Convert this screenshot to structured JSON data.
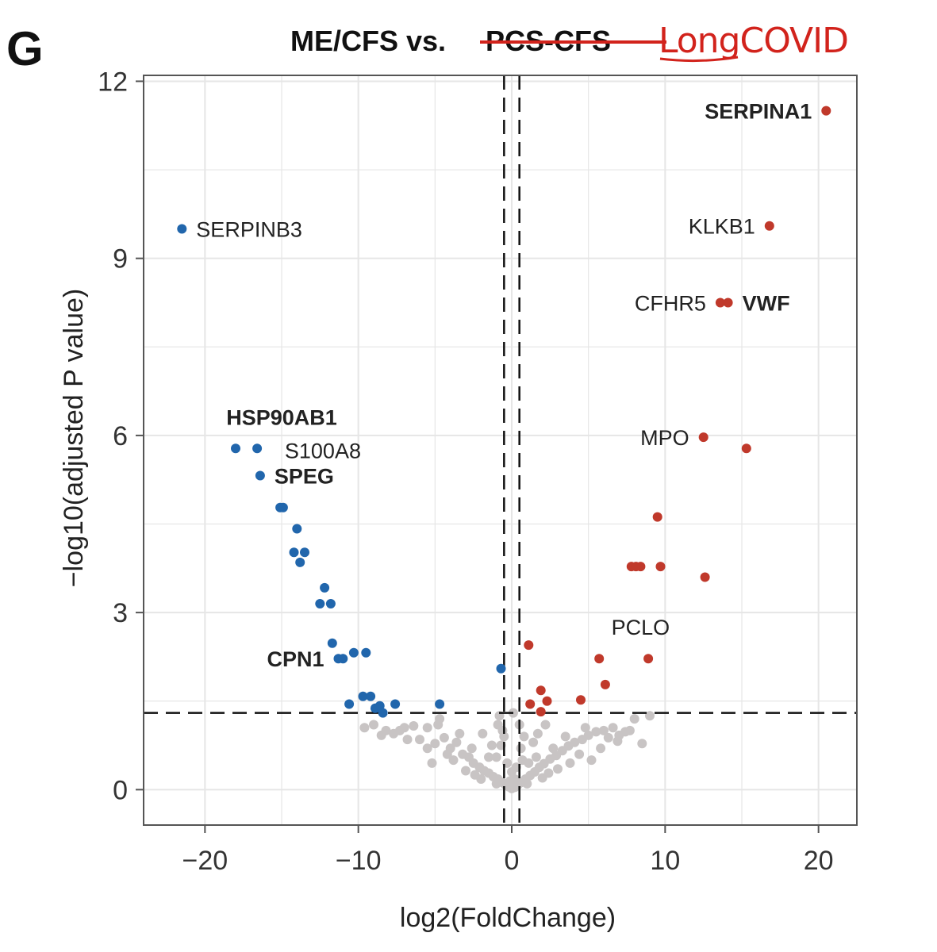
{
  "figure": {
    "panel_letter": "G",
    "title_prefix": "ME/CFS vs.",
    "title_struck": "PCS-CFS",
    "title_handwritten": "LongCOVID"
  },
  "colors": {
    "down": "#2166ac",
    "up": "#c0392b",
    "ns": "#c8c4c4",
    "grid": "#e6e6e6",
    "frame": "#555555",
    "annotation": "#d2231c"
  },
  "chart_data": {
    "type": "scatter",
    "title": "ME/CFS vs. PCS-CFS",
    "xlabel": "log2(FoldChange)",
    "ylabel": "−log10(adjusted P value)",
    "xlim": [
      -24,
      22.5
    ],
    "ylim": [
      -0.6,
      12.1
    ],
    "x_ticks": [
      -20,
      -10,
      0,
      10,
      20
    ],
    "x_tick_labels": [
      "−20",
      "−10",
      "0",
      "10",
      "20"
    ],
    "y_ticks": [
      0,
      3,
      6,
      9,
      12
    ],
    "y_tick_labels": [
      "0",
      "3",
      "6",
      "9",
      "12"
    ],
    "x_minor_ticks": [
      -15,
      -5,
      5,
      15
    ],
    "y_minor_ticks": [
      1.5,
      4.5,
      7.5,
      10.5
    ],
    "fc_threshold_lines": [
      -0.5,
      0.5
    ],
    "p_threshold_line": 1.3,
    "series": [
      {
        "name": "down",
        "points": [
          [
            -21.5,
            9.5
          ],
          [
            -18,
            5.78
          ],
          [
            -16.6,
            5.78
          ],
          [
            -16.4,
            5.32
          ],
          [
            -15.1,
            4.78
          ],
          [
            -14.9,
            4.78
          ],
          [
            -14,
            4.42
          ],
          [
            -14.2,
            4.02
          ],
          [
            -13.5,
            4.02
          ],
          [
            -13.8,
            3.85
          ],
          [
            -12.2,
            3.42
          ],
          [
            -12.5,
            3.15
          ],
          [
            -11.8,
            3.15
          ],
          [
            -11.7,
            2.48
          ],
          [
            -11.3,
            2.22
          ],
          [
            -11.0,
            2.22
          ],
          [
            -10.3,
            2.32
          ],
          [
            -9.5,
            2.32
          ],
          [
            -9.7,
            1.58
          ],
          [
            -9.2,
            1.58
          ],
          [
            -10.6,
            1.45
          ],
          [
            -8.9,
            1.38
          ],
          [
            -8.6,
            1.42
          ],
          [
            -8.4,
            1.3
          ],
          [
            -7.6,
            1.45
          ],
          [
            -4.7,
            1.45
          ],
          [
            -0.7,
            2.05
          ]
        ]
      },
      {
        "name": "up",
        "points": [
          [
            20.5,
            11.5
          ],
          [
            16.8,
            9.55
          ],
          [
            13.6,
            8.25
          ],
          [
            14.1,
            8.25
          ],
          [
            12.5,
            5.97
          ],
          [
            15.3,
            5.78
          ],
          [
            9.5,
            4.62
          ],
          [
            7.8,
            3.78
          ],
          [
            8.1,
            3.78
          ],
          [
            8.4,
            3.78
          ],
          [
            9.7,
            3.78
          ],
          [
            12.6,
            3.6
          ],
          [
            1.1,
            2.45
          ],
          [
            5.7,
            2.22
          ],
          [
            8.9,
            2.22
          ],
          [
            6.1,
            1.78
          ],
          [
            1.9,
            1.68
          ],
          [
            2.3,
            1.5
          ],
          [
            1.2,
            1.45
          ],
          [
            1.9,
            1.32
          ],
          [
            4.5,
            1.52
          ]
        ]
      },
      {
        "name": "ns",
        "points": [
          [
            -9.6,
            1.05
          ],
          [
            -9.0,
            1.1
          ],
          [
            -8.2,
            1.0
          ],
          [
            -7.7,
            0.95
          ],
          [
            -7.0,
            1.05
          ],
          [
            -6.4,
            1.08
          ],
          [
            -6.0,
            0.85
          ],
          [
            -5.5,
            1.05
          ],
          [
            -5.0,
            0.78
          ],
          [
            -4.7,
            1.2
          ],
          [
            -4.4,
            0.88
          ],
          [
            -4.0,
            0.7
          ],
          [
            -3.6,
            0.8
          ],
          [
            -3.2,
            0.6
          ],
          [
            -2.8,
            0.55
          ],
          [
            -2.5,
            0.45
          ],
          [
            -2.1,
            0.38
          ],
          [
            -1.8,
            0.32
          ],
          [
            -1.5,
            0.28
          ],
          [
            -1.2,
            0.22
          ],
          [
            -0.9,
            0.18
          ],
          [
            -0.6,
            0.12
          ],
          [
            -0.4,
            0.08
          ],
          [
            -0.2,
            0.05
          ],
          [
            0.0,
            0.02
          ],
          [
            0.2,
            0.04
          ],
          [
            0.4,
            0.08
          ],
          [
            0.6,
            0.12
          ],
          [
            0.9,
            0.18
          ],
          [
            1.2,
            0.24
          ],
          [
            1.5,
            0.3
          ],
          [
            1.8,
            0.38
          ],
          [
            2.1,
            0.44
          ],
          [
            2.5,
            0.52
          ],
          [
            2.9,
            0.58
          ],
          [
            3.3,
            0.66
          ],
          [
            3.7,
            0.74
          ],
          [
            4.1,
            0.8
          ],
          [
            4.6,
            0.85
          ],
          [
            5.0,
            0.92
          ],
          [
            5.5,
            0.98
          ],
          [
            6.0,
            1.0
          ],
          [
            6.6,
            1.05
          ],
          [
            7.0,
            0.92
          ],
          [
            7.4,
            0.98
          ],
          [
            8.0,
            1.2
          ],
          [
            8.5,
            0.78
          ],
          [
            9.0,
            1.25
          ],
          [
            -0.8,
            1.25
          ],
          [
            -0.6,
            1.0
          ],
          [
            -0.7,
            0.75
          ],
          [
            0.6,
            0.7
          ],
          [
            0.7,
            0.5
          ],
          [
            -0.3,
            0.45
          ],
          [
            0.3,
            0.38
          ],
          [
            -1.0,
            0.55
          ],
          [
            1.1,
            0.45
          ],
          [
            -1.5,
            0.55
          ],
          [
            1.6,
            0.55
          ],
          [
            2.4,
            0.28
          ],
          [
            -2.4,
            0.25
          ],
          [
            3.0,
            0.35
          ],
          [
            -3.0,
            0.32
          ],
          [
            3.8,
            0.45
          ],
          [
            -3.8,
            0.5
          ],
          [
            0.0,
            0.3
          ],
          [
            0.2,
            0.18
          ],
          [
            -0.1,
            0.15
          ],
          [
            1.0,
            0.1
          ],
          [
            -1.0,
            0.1
          ],
          [
            2.0,
            0.2
          ],
          [
            -2.0,
            0.18
          ],
          [
            -5.5,
            0.7
          ],
          [
            5.8,
            0.7
          ],
          [
            -6.8,
            0.85
          ],
          [
            6.9,
            0.82
          ],
          [
            -8.5,
            0.92
          ],
          [
            -4.2,
            0.6
          ],
          [
            4.4,
            0.6
          ],
          [
            0.8,
            0.9
          ],
          [
            -0.5,
            0.9
          ],
          [
            1.4,
            0.8
          ],
          [
            -1.3,
            0.75
          ],
          [
            5.2,
            0.5
          ],
          [
            -5.2,
            0.45
          ],
          [
            0.1,
            1.3
          ],
          [
            -2.6,
            0.7
          ],
          [
            2.7,
            0.7
          ],
          [
            3.5,
            0.9
          ],
          [
            -3.4,
            0.95
          ],
          [
            6.3,
            0.88
          ],
          [
            -7.3,
            1.0
          ],
          [
            7.7,
            1.0
          ],
          [
            0.5,
            1.1
          ],
          [
            -0.9,
            1.1
          ],
          [
            1.7,
            0.95
          ],
          [
            -1.9,
            0.95
          ],
          [
            4.8,
            1.05
          ],
          [
            -4.8,
            1.1
          ],
          [
            2.2,
            1.1
          ]
        ]
      }
    ],
    "labels": [
      {
        "text": "SERPINA1",
        "x": 20.5,
        "y": 11.5,
        "bold": true,
        "side": "left"
      },
      {
        "text": "SERPINB3",
        "x": -21.5,
        "y": 9.5,
        "bold": false,
        "side": "right"
      },
      {
        "text": "KLKB1",
        "x": 16.8,
        "y": 9.55,
        "bold": false,
        "side": "left"
      },
      {
        "text": "CFHR5",
        "x": 13.6,
        "y": 8.25,
        "bold": false,
        "side": "left"
      },
      {
        "text": "VWF",
        "x": 14.1,
        "y": 8.25,
        "bold": true,
        "side": "right"
      },
      {
        "text": "HSP90AB1",
        "x": -16.6,
        "y": 5.78,
        "bold": true,
        "side": "above"
      },
      {
        "text": "S100A8",
        "x": -16.6,
        "y": 5.78,
        "bold": false,
        "side": "right"
      },
      {
        "text": "SPEG",
        "x": -16.4,
        "y": 5.32,
        "bold": true,
        "side": "right"
      },
      {
        "text": "MPO",
        "x": 12.5,
        "y": 5.97,
        "bold": false,
        "side": "left"
      },
      {
        "text": "PCLO",
        "x": 8.9,
        "y": 2.22,
        "bold": false,
        "side": "above"
      },
      {
        "text": "CPN1",
        "x": -11.3,
        "y": 2.22,
        "bold": true,
        "side": "left"
      }
    ]
  }
}
